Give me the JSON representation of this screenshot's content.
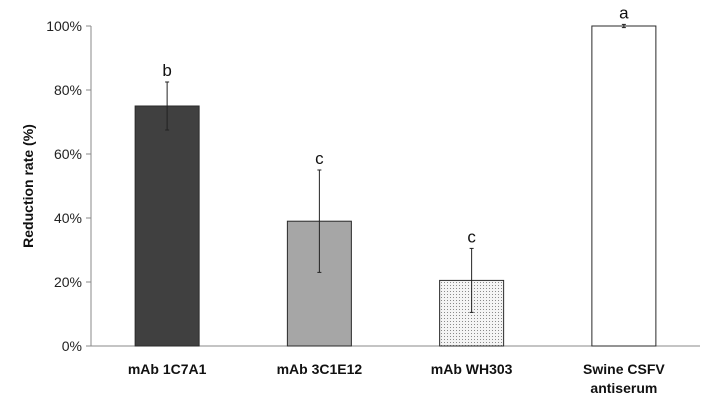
{
  "chart_data": {
    "type": "bar",
    "categories": [
      [
        "mAb 1C7A1"
      ],
      [
        "mAb 3C1E12"
      ],
      [
        "mAb WH303"
      ],
      [
        "Swine CSFV",
        "antiserum"
      ]
    ],
    "values": [
      75,
      39,
      20.5,
      100
    ],
    "error_plus_minus": [
      7.5,
      16,
      10,
      0.5
    ],
    "significance_letters": [
      "b",
      "c",
      "c",
      "a"
    ],
    "bar_colors": [
      "#404040",
      "#a6a6a6",
      "#ececec",
      "#ffffff"
    ],
    "bar_patterns": [
      "solid",
      "solid",
      "dotted",
      "solid"
    ],
    "title": "",
    "xlabel": "",
    "ylabel": "Reduction rate (%)",
    "ylim": [
      0,
      100
    ],
    "yticks": [
      0,
      20,
      40,
      60,
      80,
      100
    ],
    "ytick_labels": [
      "0%",
      "20%",
      "40%",
      "60%",
      "80%",
      "100%"
    ],
    "grid": false,
    "legend": "none"
  }
}
